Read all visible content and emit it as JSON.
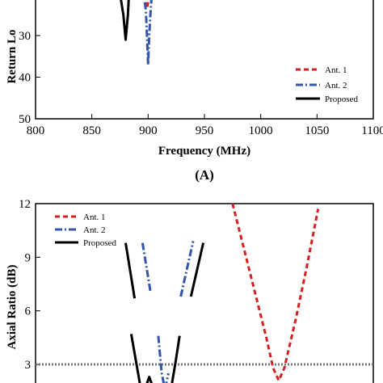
{
  "chart_data": [
    {
      "type": "line",
      "panel_label": "(A)",
      "xlabel": "Frequency (MHz)",
      "ylabel": "Return Lo",
      "xlim": [
        800,
        1100
      ],
      "ylim": [
        50,
        20
      ],
      "y_inverted": true,
      "x_ticks": [
        "800",
        "850",
        "900",
        "950",
        "1000",
        "1050",
        "1100"
      ],
      "y_ticks": [
        "30",
        "40",
        "50"
      ],
      "legend": {
        "position": "bottom-right",
        "entries": [
          "Ant. 1",
          "Ant. 2",
          "Proposed"
        ]
      },
      "series": [
        {
          "name": "Ant. 1",
          "color": "#d32020",
          "dash": "dashed",
          "x": [
            898,
            899,
            900
          ],
          "y": [
            22,
            23.5,
            22
          ]
        },
        {
          "name": "Ant. 2",
          "color": "#3355aa",
          "dash": "dashdot",
          "x": [
            897,
            898,
            899,
            900,
            901,
            902,
            903
          ],
          "y": [
            22,
            24,
            30,
            37,
            30,
            25,
            21
          ]
        },
        {
          "name": "Proposed",
          "color": "#000000",
          "dash": "solid",
          "x": [
            875,
            878,
            879,
            880,
            881,
            882,
            883
          ],
          "y": [
            20,
            25,
            28,
            31,
            28,
            25,
            20
          ]
        }
      ]
    },
    {
      "type": "line",
      "xlabel": "",
      "ylabel": "Axial Ratio (dB)",
      "xlim": [
        800,
        1100
      ],
      "ylim": [
        1.5,
        12
      ],
      "y_ticks": [
        "3",
        "6",
        "9",
        "12"
      ],
      "reference_line": {
        "y": 3,
        "style": "dotted",
        "color": "#777777"
      },
      "legend": {
        "position": "top-left",
        "entries": [
          "Ant. 1",
          "Ant. 2",
          "Proposed"
        ]
      },
      "series": [
        {
          "name": "Ant. 1",
          "color": "#d32020",
          "dash": "dashed",
          "x": [
            975,
            985,
            995,
            1005,
            1011,
            1016,
            1021,
            1031,
            1041,
            1051
          ],
          "y": [
            12,
            9.5,
            7,
            4.5,
            2.8,
            2.1,
            2.8,
            5.5,
            8.5,
            11.7
          ]
        },
        {
          "name": "Ant. 2",
          "color": "#3355aa",
          "dash": "dashdot",
          "segments": [
            {
              "x": [
                895,
                902
              ],
              "y": [
                9.8,
                7.1
              ]
            },
            {
              "x": [
                929,
                940
              ],
              "y": [
                6.8,
                9.9
              ]
            },
            {
              "x": [
                909,
                912,
                915,
                918
              ],
              "y": [
                4.6,
                2.5,
                1.6,
                2.5
              ]
            }
          ]
        },
        {
          "name": "Proposed",
          "color": "#000000",
          "dash": "solid",
          "segments": [
            {
              "x": [
                880,
                888
              ],
              "y": [
                9.8,
                6.7
              ]
            },
            {
              "x": [
                938,
                949
              ],
              "y": [
                6.8,
                9.8
              ]
            },
            {
              "x": [
                885,
                893,
                897,
                901,
                905,
                910
              ],
              "y": [
                4.7,
                1.8,
                1.6,
                2.3,
                1.6,
                1.5
              ]
            },
            {
              "x": [
                920,
                924,
                928
              ],
              "y": [
                1.5,
                3.0,
                4.6
              ]
            }
          ]
        }
      ]
    }
  ]
}
